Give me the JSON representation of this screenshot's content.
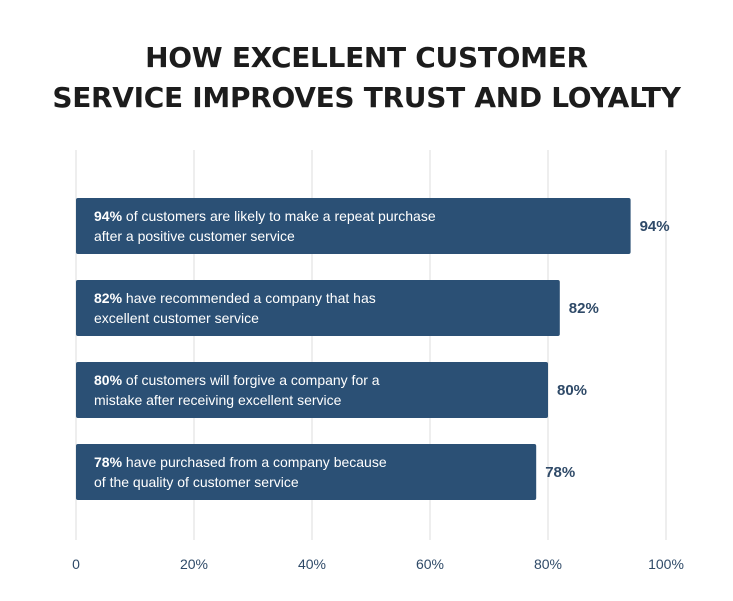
{
  "title_lines": [
    "HOW EXCELLENT CUSTOMER",
    "SERVICE IMPROVES TRUST AND LOYALTY"
  ],
  "chart_data": {
    "type": "bar",
    "orientation": "horizontal",
    "title": "HOW EXCELLENT CUSTOMER SERVICE IMPROVES TRUST AND LOYALTY",
    "xlabel": "",
    "ylabel": "",
    "xlim": [
      0,
      100
    ],
    "xticks": [
      "0",
      "20%",
      "40%",
      "60%",
      "80%",
      "100%"
    ],
    "grid": true,
    "colors": {
      "bar": "#2b5075",
      "label": "#2f4a68"
    },
    "bars": [
      {
        "value": 94,
        "value_label": "94%",
        "highlight": "94%",
        "lines": [
          " of customers are likely to make a repeat purchase",
          "after a positive customer service"
        ]
      },
      {
        "value": 82,
        "value_label": "82%",
        "highlight": "82%",
        "lines": [
          " have recommended a company that has",
          "excellent customer service"
        ]
      },
      {
        "value": 80,
        "value_label": "80%",
        "highlight": "80%",
        "lines": [
          " of customers will forgive a company for a",
          "mistake after receiving excellent service"
        ]
      },
      {
        "value": 78,
        "value_label": "78%",
        "highlight": "78%",
        "lines": [
          " have purchased from a company because",
          "of the quality of customer service"
        ]
      }
    ]
  }
}
